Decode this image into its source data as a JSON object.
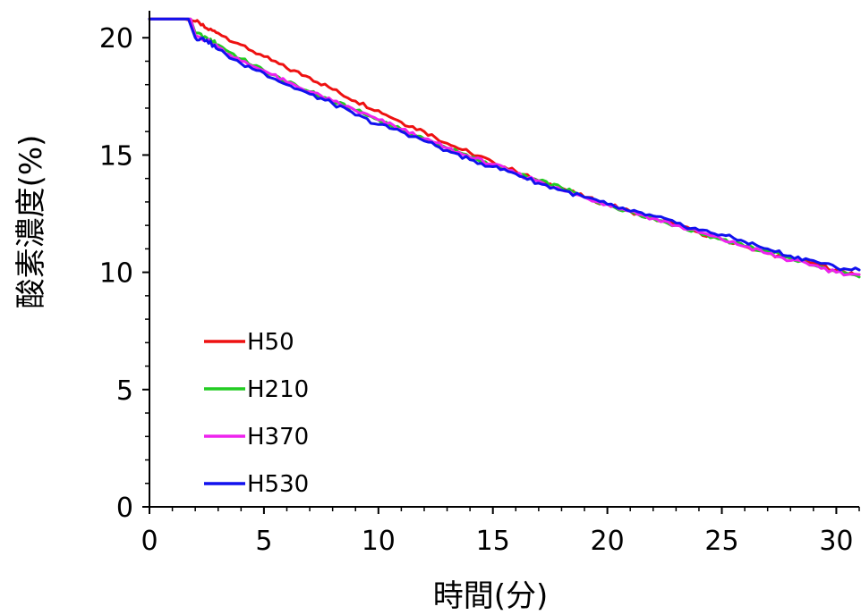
{
  "chart_data": {
    "type": "line",
    "title": "",
    "xlabel": "時間(分)",
    "ylabel": "酸素濃度(%)",
    "xlim": [
      0,
      31
    ],
    "ylim": [
      0,
      21
    ],
    "xticks": [
      0,
      5,
      10,
      15,
      20,
      25,
      30
    ],
    "yticks": [
      0,
      5,
      10,
      15,
      20
    ],
    "grid": false,
    "legend": "bottom-left",
    "series": [
      {
        "name": "H50",
        "color": "#ee1111",
        "x": [
          0,
          1.5,
          2.0,
          2.5,
          3,
          4,
          5,
          6,
          7,
          8,
          9,
          10,
          11,
          12,
          13,
          14,
          15,
          16,
          17,
          18,
          19,
          20,
          21,
          22,
          23,
          24,
          25,
          26,
          27,
          28,
          29,
          30,
          31
        ],
        "y": [
          20.8,
          20.8,
          20.7,
          20.4,
          20.2,
          19.7,
          19.2,
          18.7,
          18.3,
          17.8,
          17.3,
          16.9,
          16.4,
          16.0,
          15.5,
          15.1,
          14.7,
          14.3,
          13.9,
          13.6,
          13.2,
          12.9,
          12.6,
          12.3,
          12.0,
          11.7,
          11.4,
          11.1,
          10.8,
          10.6,
          10.4,
          10.1,
          9.9
        ]
      },
      {
        "name": "H210",
        "color": "#22cc22",
        "x": [
          0,
          1.5,
          1.8,
          2.0,
          2.5,
          3,
          4,
          5,
          6,
          7,
          8,
          9,
          10,
          11,
          12,
          13,
          14,
          15,
          16,
          17,
          18,
          19,
          20,
          21,
          22,
          23,
          24,
          25,
          26,
          27,
          28,
          29,
          30,
          31
        ],
        "y": [
          20.8,
          20.8,
          20.8,
          20.2,
          20.0,
          19.7,
          19.1,
          18.6,
          18.1,
          17.7,
          17.3,
          16.9,
          16.5,
          16.1,
          15.7,
          15.3,
          14.9,
          14.6,
          14.2,
          13.9,
          13.6,
          13.2,
          12.9,
          12.6,
          12.3,
          12.0,
          11.7,
          11.4,
          11.1,
          10.9,
          10.6,
          10.3,
          10.0,
          9.8
        ]
      },
      {
        "name": "H370",
        "color": "#ee22ee",
        "x": [
          0,
          1.5,
          1.8,
          2.0,
          2.5,
          3,
          4,
          5,
          6,
          7,
          8,
          9,
          10,
          11,
          12,
          13,
          14,
          15,
          16,
          17,
          18,
          19,
          20,
          21,
          22,
          23,
          24,
          25,
          26,
          27,
          28,
          29,
          30,
          31
        ],
        "y": [
          20.8,
          20.8,
          20.8,
          20.1,
          19.9,
          19.6,
          19.0,
          18.6,
          18.1,
          17.7,
          17.3,
          16.9,
          16.5,
          16.1,
          15.7,
          15.3,
          14.9,
          14.6,
          14.2,
          13.9,
          13.5,
          13.2,
          12.9,
          12.6,
          12.3,
          12.0,
          11.7,
          11.4,
          11.1,
          10.8,
          10.5,
          10.3,
          10.0,
          9.9
        ]
      },
      {
        "name": "H530",
        "color": "#1111ee",
        "x": [
          0,
          1.5,
          1.7,
          2.0,
          2.5,
          3,
          4,
          5,
          6,
          7,
          8,
          9,
          10,
          11,
          12,
          13,
          14,
          15,
          16,
          17,
          18,
          19,
          20,
          21,
          22,
          23,
          24,
          25,
          26,
          27,
          28,
          29,
          30,
          31
        ],
        "y": [
          20.8,
          20.8,
          20.8,
          20.0,
          19.9,
          19.5,
          18.9,
          18.5,
          18.0,
          17.6,
          17.2,
          16.7,
          16.3,
          16.0,
          15.6,
          15.2,
          14.8,
          14.5,
          14.2,
          13.8,
          13.5,
          13.2,
          12.9,
          12.6,
          12.4,
          12.1,
          11.8,
          11.6,
          11.3,
          11.0,
          10.7,
          10.5,
          10.2,
          10.1
        ]
      }
    ]
  }
}
